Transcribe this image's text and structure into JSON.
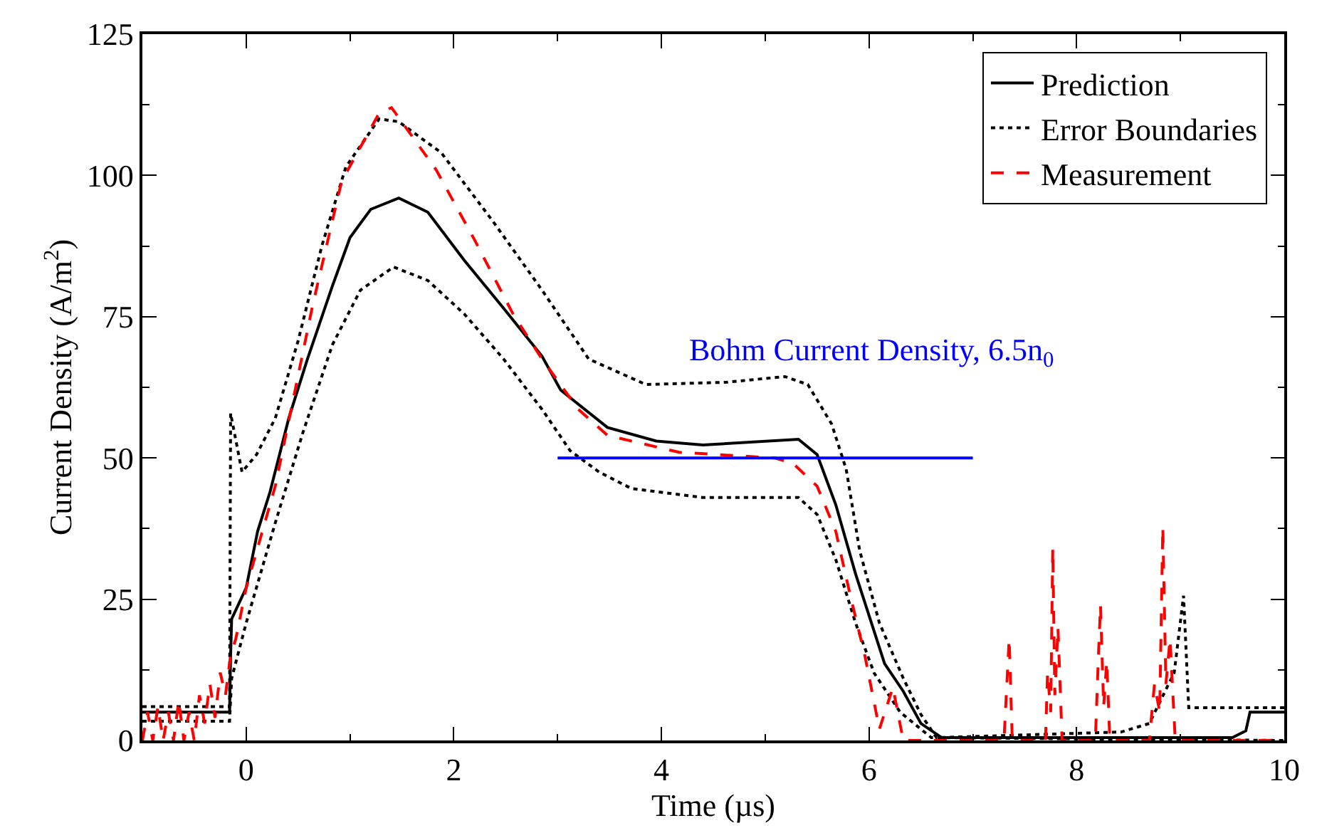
{
  "chart_data": {
    "type": "line",
    "xlabel": "Time (µs)",
    "ylabel": "Current Density (A/m$^{2}$)",
    "xlim": [
      -1,
      10
    ],
    "xticks": [
      0,
      2,
      4,
      6,
      8,
      10
    ],
    "ylim": [
      0,
      125
    ],
    "yticks": [
      0,
      25,
      50,
      75,
      100,
      125
    ],
    "grid": false,
    "legend": "top right",
    "series": [
      {
        "name": "Prediction",
        "color": "#000000",
        "line_style": "solid",
        "x": [
          -1,
          -0.16,
          -0.15,
          -0.14,
          0,
          0.11,
          0.23,
          0.41,
          0.59,
          0.83,
          1.0,
          1.2,
          1.47,
          1.75,
          2.1,
          2.48,
          2.85,
          3.03,
          3.48,
          3.95,
          4.4,
          5.32,
          5.5,
          5.68,
          5.87,
          6.15,
          6.33,
          6.5,
          6.7,
          9.5,
          9.63,
          9.67,
          10
        ],
        "values": [
          5,
          5,
          15,
          21.5,
          27,
          37,
          44,
          57,
          67.5,
          80.4,
          89,
          94,
          96,
          93.5,
          85,
          76.5,
          68,
          62,
          55.4,
          53,
          52.3,
          53.3,
          50.6,
          41.7,
          29.5,
          13.6,
          8.7,
          3,
          0.5,
          0.5,
          1.7,
          5,
          5
        ]
      },
      {
        "name": "Error Boundaries",
        "color": "#000000",
        "line_style": "dotted",
        "x": [
          -1,
          -0.16,
          -0.15,
          -0.04,
          0.1,
          0.28,
          0.5,
          0.73,
          0.96,
          1.28,
          1.47,
          1.88,
          2.38,
          2.85,
          3.3,
          3.85,
          4.63,
          5.19,
          5.41,
          5.64,
          5.78,
          5.91,
          6.1,
          6.33,
          6.5,
          6.65,
          8.43,
          8.7,
          8.94,
          9.03,
          9.08,
          10
        ],
        "values": [
          6,
          6,
          57.9,
          47.5,
          50.6,
          57,
          70.7,
          87.6,
          101.5,
          110,
          109.5,
          104,
          91.8,
          79.7,
          67.5,
          63,
          63.4,
          64.4,
          63,
          56,
          48,
          33.6,
          20.8,
          11,
          4.6,
          0.5,
          1.5,
          3,
          12,
          25.6,
          5.8,
          5.8
        ]
      },
      {
        "color": "#000000",
        "line_style": "dotted",
        "x": [
          -1,
          -0.16,
          -0.14,
          0,
          0.28,
          0.55,
          0.83,
          1.1,
          1.42,
          1.75,
          2.1,
          2.48,
          2.85,
          3.12,
          3.4,
          3.71,
          4.4,
          5.32,
          5.5,
          5.68,
          5.87,
          6.05,
          6.3,
          6.6,
          10
        ],
        "values": [
          3.4,
          3.4,
          11,
          20.8,
          38.5,
          54.7,
          70,
          79.7,
          83.8,
          81.4,
          75.5,
          67.5,
          58.6,
          51.3,
          47.5,
          44.6,
          43,
          43,
          40,
          32,
          20.8,
          11.9,
          5,
          0.5,
          0
        ]
      },
      {
        "name": "Measurement",
        "color": "#ff0000",
        "line_style": "dashed",
        "x": [
          -1,
          -0.95,
          -0.9,
          -0.85,
          -0.8,
          -0.75,
          -0.7,
          -0.65,
          -0.6,
          -0.55,
          -0.5,
          -0.45,
          -0.4,
          -0.35,
          -0.3,
          -0.25,
          -0.2,
          -0.15,
          -0.1,
          0,
          0.28,
          0.64,
          0.92,
          1.28,
          1.4,
          1.83,
          2.2,
          2.57,
          2.85,
          3.2,
          3.48,
          4.17,
          5.09,
          5.27,
          5.5,
          5.68,
          5.82,
          5.96,
          6.1,
          6.23,
          6.33,
          7.3,
          7.35,
          7.38,
          7.7,
          7.72,
          7.75,
          7.77,
          7.79,
          7.82,
          7.86,
          8.18,
          8.21,
          8.23,
          8.26,
          8.29,
          8.32,
          8.7,
          8.75,
          8.8,
          8.83,
          8.86,
          8.9,
          8.95,
          10
        ],
        "values": [
          0,
          5,
          0,
          6,
          0,
          5,
          0,
          7,
          0,
          5,
          0,
          8,
          3,
          10,
          4,
          12,
          8,
          15,
          18,
          27,
          45,
          77,
          99,
          111,
          112,
          101,
          88.6,
          75.5,
          67.5,
          58.6,
          54,
          51,
          50,
          49,
          45,
          37,
          25.6,
          15,
          2,
          9.4,
          0,
          0,
          18,
          0,
          0,
          12,
          5,
          34,
          8,
          20,
          0,
          0,
          15,
          24,
          6,
          14,
          0,
          0,
          10,
          5,
          37.8,
          10,
          18,
          0,
          0
        ]
      },
      {
        "color": "#0000ff",
        "line_style": "solid",
        "x": [
          3,
          7
        ],
        "values": [
          50,
          50
        ]
      }
    ],
    "annotations": [
      {
        "text": "Bohm Current Density, 6.5n$_{0}$",
        "x": 5,
        "y": 50
      }
    ]
  }
}
